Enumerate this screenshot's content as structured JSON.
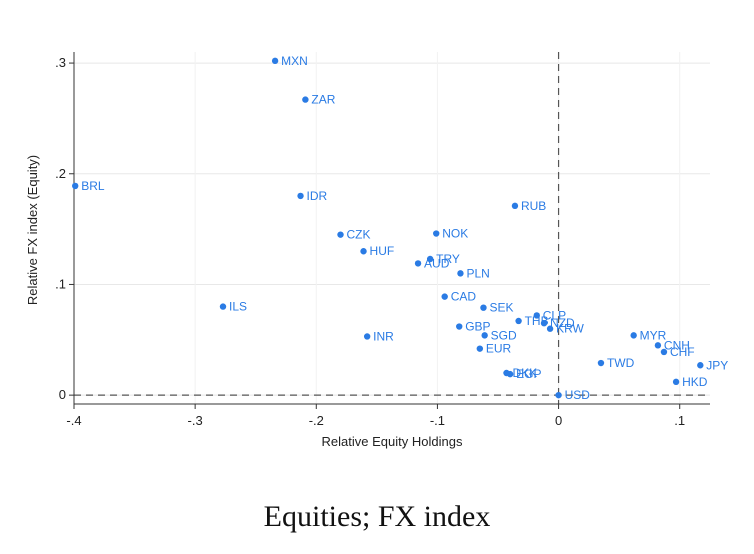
{
  "chart_data": {
    "type": "scatter",
    "title": "",
    "xlabel": "Relative Equity Holdings",
    "ylabel": "Relative FX index (Equity)",
    "xlim": [
      -0.4,
      0.125
    ],
    "ylim": [
      -0.008,
      0.31
    ],
    "x_ticks": [
      -0.4,
      -0.3,
      -0.2,
      -0.1,
      0,
      0.1
    ],
    "x_tick_labels": [
      "-.4",
      "-.3",
      "-.2",
      "-.1",
      "0",
      ".1"
    ],
    "y_ticks": [
      0,
      0.1,
      0.2,
      0.3
    ],
    "y_tick_labels": [
      "0",
      ".1",
      ".2",
      ".3"
    ],
    "reference_lines": {
      "x": 0,
      "y": 0,
      "style": "dashed"
    },
    "grid": true,
    "point_color": "#2a7be4",
    "points": [
      {
        "label": "MXN",
        "x": -0.234,
        "y": 0.302
      },
      {
        "label": "ZAR",
        "x": -0.209,
        "y": 0.267
      },
      {
        "label": "BRL",
        "x": -0.399,
        "y": 0.189
      },
      {
        "label": "IDR",
        "x": -0.213,
        "y": 0.18
      },
      {
        "label": "RUB",
        "x": -0.036,
        "y": 0.171
      },
      {
        "label": "CZK",
        "x": -0.18,
        "y": 0.145
      },
      {
        "label": "NOK",
        "x": -0.101,
        "y": 0.146
      },
      {
        "label": "HUF",
        "x": -0.161,
        "y": 0.13
      },
      {
        "label": "TRY",
        "x": -0.106,
        "y": 0.123
      },
      {
        "label": "AUD",
        "x": -0.116,
        "y": 0.119
      },
      {
        "label": "PLN",
        "x": -0.081,
        "y": 0.11
      },
      {
        "label": "CAD",
        "x": -0.094,
        "y": 0.089
      },
      {
        "label": "ILS",
        "x": -0.277,
        "y": 0.08
      },
      {
        "label": "SEK",
        "x": -0.062,
        "y": 0.079
      },
      {
        "label": "CLP",
        "x": -0.018,
        "y": 0.072
      },
      {
        "label": "THB",
        "x": -0.033,
        "y": 0.067
      },
      {
        "label": "NZD",
        "x": -0.012,
        "y": 0.065
      },
      {
        "label": "GBP",
        "x": -0.082,
        "y": 0.062
      },
      {
        "label": "KRW",
        "x": -0.007,
        "y": 0.06
      },
      {
        "label": "SGD",
        "x": -0.061,
        "y": 0.054
      },
      {
        "label": "INR",
        "x": -0.158,
        "y": 0.053
      },
      {
        "label": "MYR",
        "x": 0.062,
        "y": 0.054
      },
      {
        "label": "CNH",
        "x": 0.082,
        "y": 0.045
      },
      {
        "label": "EUR",
        "x": -0.065,
        "y": 0.042
      },
      {
        "label": "CHF",
        "x": 0.087,
        "y": 0.039
      },
      {
        "label": "TWD",
        "x": 0.035,
        "y": 0.029
      },
      {
        "label": "JPY",
        "x": 0.117,
        "y": 0.027
      },
      {
        "label": "DKK",
        "x": -0.043,
        "y": 0.02
      },
      {
        "label": "EGP",
        "x": -0.04,
        "y": 0.019
      },
      {
        "label": "HKD",
        "x": 0.097,
        "y": 0.012
      },
      {
        "label": "USD",
        "x": 0.0,
        "y": 0.0
      }
    ]
  },
  "caption": "Equities; FX index"
}
